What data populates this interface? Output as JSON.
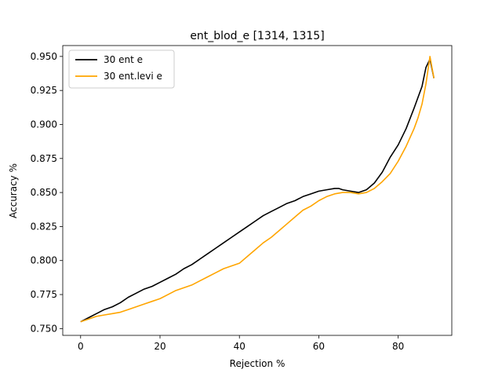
{
  "chart_data": {
    "type": "line",
    "title": "ent_blod_e  [1314, 1315]",
    "xlabel": "Rejection %",
    "ylabel": "Accuracy %",
    "xlim": [
      -4.5,
      93.5
    ],
    "ylim": [
      0.745,
      0.958
    ],
    "xticks": [
      0,
      20,
      40,
      60,
      80
    ],
    "yticks": [
      0.75,
      0.775,
      0.8,
      0.825,
      0.85,
      0.875,
      0.9,
      0.925,
      0.95
    ],
    "ytick_labels": [
      "0.750",
      "0.775",
      "0.800",
      "0.825",
      "0.850",
      "0.875",
      "0.900",
      "0.925",
      "0.950"
    ],
    "grid": false,
    "legend_position": "upper-left",
    "series": [
      {
        "name": "30 ent e",
        "color": "#000000",
        "x": [
          0,
          2,
          4,
          6,
          8,
          10,
          12,
          14,
          16,
          18,
          20,
          22,
          24,
          26,
          28,
          30,
          32,
          34,
          36,
          38,
          40,
          42,
          44,
          46,
          48,
          50,
          52,
          54,
          56,
          58,
          60,
          62,
          64,
          65,
          66,
          68,
          70,
          72,
          74,
          76,
          78,
          80,
          82,
          84,
          85,
          86,
          87,
          88,
          89
        ],
        "y": [
          0.755,
          0.758,
          0.761,
          0.764,
          0.766,
          0.769,
          0.773,
          0.776,
          0.779,
          0.781,
          0.784,
          0.787,
          0.79,
          0.794,
          0.797,
          0.801,
          0.805,
          0.809,
          0.813,
          0.817,
          0.821,
          0.825,
          0.829,
          0.833,
          0.836,
          0.839,
          0.842,
          0.844,
          0.847,
          0.849,
          0.851,
          0.852,
          0.853,
          0.853,
          0.852,
          0.851,
          0.85,
          0.852,
          0.857,
          0.865,
          0.876,
          0.885,
          0.897,
          0.912,
          0.92,
          0.928,
          0.942,
          0.948,
          0.934
        ]
      },
      {
        "name": "30 ent.levi e",
        "color": "#ffa500",
        "x": [
          0,
          2,
          4,
          6,
          8,
          10,
          12,
          14,
          16,
          18,
          20,
          22,
          24,
          26,
          28,
          30,
          32,
          34,
          36,
          38,
          40,
          42,
          44,
          46,
          48,
          50,
          52,
          54,
          56,
          58,
          60,
          62,
          64,
          66,
          68,
          70,
          72,
          74,
          76,
          78,
          80,
          82,
          84,
          85,
          86,
          87,
          88,
          89
        ],
        "y": [
          0.755,
          0.757,
          0.759,
          0.76,
          0.761,
          0.762,
          0.764,
          0.766,
          0.768,
          0.77,
          0.772,
          0.775,
          0.778,
          0.78,
          0.782,
          0.785,
          0.788,
          0.791,
          0.794,
          0.796,
          0.798,
          0.803,
          0.808,
          0.813,
          0.817,
          0.822,
          0.827,
          0.832,
          0.837,
          0.84,
          0.844,
          0.847,
          0.849,
          0.85,
          0.85,
          0.849,
          0.85,
          0.853,
          0.858,
          0.864,
          0.873,
          0.884,
          0.897,
          0.905,
          0.915,
          0.93,
          0.95,
          0.934
        ]
      }
    ]
  }
}
